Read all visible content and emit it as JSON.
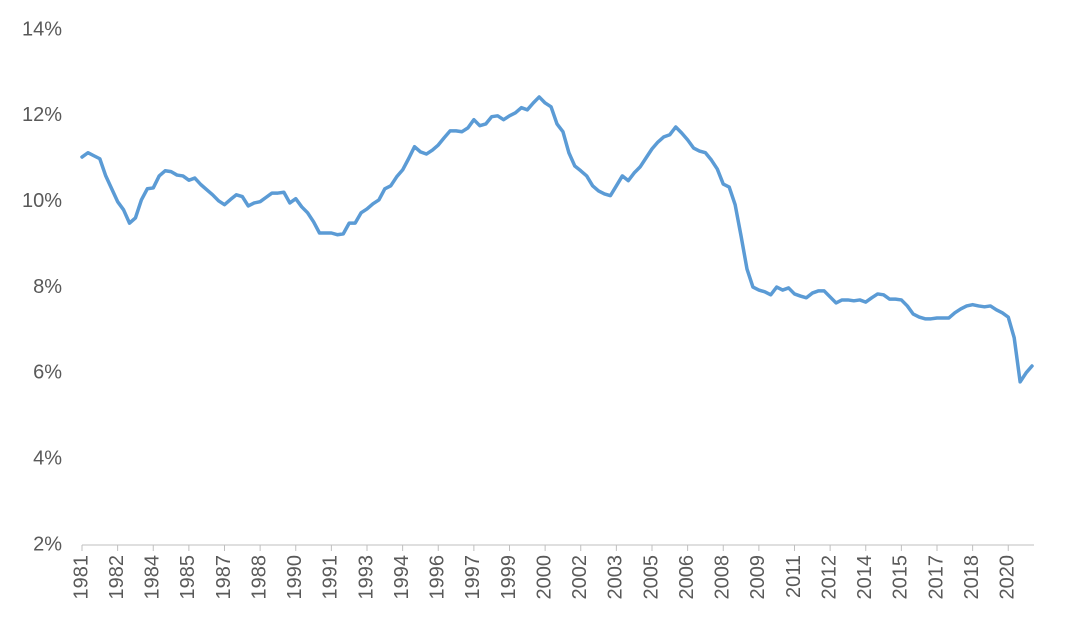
{
  "chart_data": {
    "type": "line",
    "categories": [
      "1981",
      null,
      null,
      null,
      null,
      null,
      "1982",
      null,
      null,
      null,
      null,
      null,
      "1984",
      null,
      null,
      null,
      null,
      null,
      "1985",
      null,
      null,
      null,
      null,
      null,
      "1987",
      null,
      null,
      null,
      null,
      null,
      "1988",
      null,
      null,
      null,
      null,
      null,
      "1990",
      null,
      null,
      null,
      null,
      null,
      "1991",
      null,
      null,
      null,
      null,
      null,
      "1993",
      null,
      null,
      null,
      null,
      null,
      "1994",
      null,
      null,
      null,
      null,
      null,
      "1996",
      null,
      null,
      null,
      null,
      null,
      "1997",
      null,
      null,
      null,
      null,
      null,
      "1999",
      null,
      null,
      null,
      null,
      null,
      "2000",
      null,
      null,
      null,
      null,
      null,
      "2002",
      null,
      null,
      null,
      null,
      null,
      "2003",
      null,
      null,
      null,
      null,
      null,
      "2005",
      null,
      null,
      null,
      null,
      null,
      "2006",
      null,
      null,
      null,
      null,
      null,
      "2008",
      null,
      null,
      null,
      null,
      null,
      "2009",
      null,
      null,
      null,
      null,
      null,
      "2011",
      null,
      null,
      null,
      null,
      null,
      "2012",
      null,
      null,
      null,
      null,
      null,
      "2014",
      null,
      null,
      null,
      null,
      null,
      "2015",
      null,
      null,
      null,
      null,
      null,
      "2017",
      null,
      null,
      null,
      null,
      null,
      "2018",
      null,
      null,
      null,
      null,
      null,
      "2020",
      null,
      null,
      null,
      null
    ],
    "values": [
      11.04,
      11.14,
      11.07,
      11.0,
      10.6,
      10.3,
      10.0,
      9.81,
      9.5,
      9.62,
      10.04,
      10.3,
      10.32,
      10.6,
      10.72,
      10.7,
      10.62,
      10.6,
      10.5,
      10.55,
      10.4,
      10.28,
      10.16,
      10.02,
      9.93,
      10.05,
      10.16,
      10.12,
      9.9,
      9.97,
      10.0,
      10.1,
      10.2,
      10.2,
      10.22,
      9.97,
      10.07,
      9.88,
      9.74,
      9.53,
      9.27,
      9.27,
      9.27,
      9.23,
      9.25,
      9.5,
      9.5,
      9.74,
      9.83,
      9.95,
      10.04,
      10.3,
      10.37,
      10.58,
      10.74,
      11.0,
      11.28,
      11.16,
      11.11,
      11.2,
      11.32,
      11.49,
      11.65,
      11.65,
      11.63,
      11.72,
      11.91,
      11.77,
      11.81,
      11.98,
      12.0,
      11.91,
      12.0,
      12.07,
      12.19,
      12.14,
      12.3,
      12.44,
      12.3,
      12.21,
      11.81,
      11.63,
      11.14,
      10.83,
      10.72,
      10.6,
      10.37,
      10.25,
      10.18,
      10.14,
      10.37,
      10.6,
      10.49,
      10.67,
      10.81,
      11.02,
      11.23,
      11.39,
      11.51,
      11.56,
      11.74,
      11.6,
      11.44,
      11.25,
      11.18,
      11.14,
      10.97,
      10.76,
      10.41,
      10.34,
      9.93,
      9.2,
      8.43,
      8.01,
      7.94,
      7.9,
      7.83,
      8.01,
      7.94,
      7.99,
      7.85,
      7.8,
      7.76,
      7.87,
      7.92,
      7.92,
      7.78,
      7.64,
      7.71,
      7.71,
      7.69,
      7.71,
      7.66,
      7.76,
      7.85,
      7.83,
      7.73,
      7.73,
      7.71,
      7.57,
      7.38,
      7.31,
      7.27,
      7.27,
      7.29,
      7.29,
      7.29,
      7.41,
      7.5,
      7.57,
      7.6,
      7.57,
      7.55,
      7.57,
      7.48,
      7.41,
      7.31,
      6.83,
      5.8,
      6.01,
      6.17
    ],
    "color": "#5b9bd5",
    "ylim": [
      2,
      14
    ],
    "yticks": [
      {
        "value": 2,
        "label": "2%"
      },
      {
        "value": 4,
        "label": "4%"
      },
      {
        "value": 6,
        "label": "6%"
      },
      {
        "value": 8,
        "label": "8%"
      },
      {
        "value": 10,
        "label": "10%"
      },
      {
        "value": 12,
        "label": "12%"
      },
      {
        "value": 14,
        "label": "14%"
      }
    ],
    "grid": false
  }
}
